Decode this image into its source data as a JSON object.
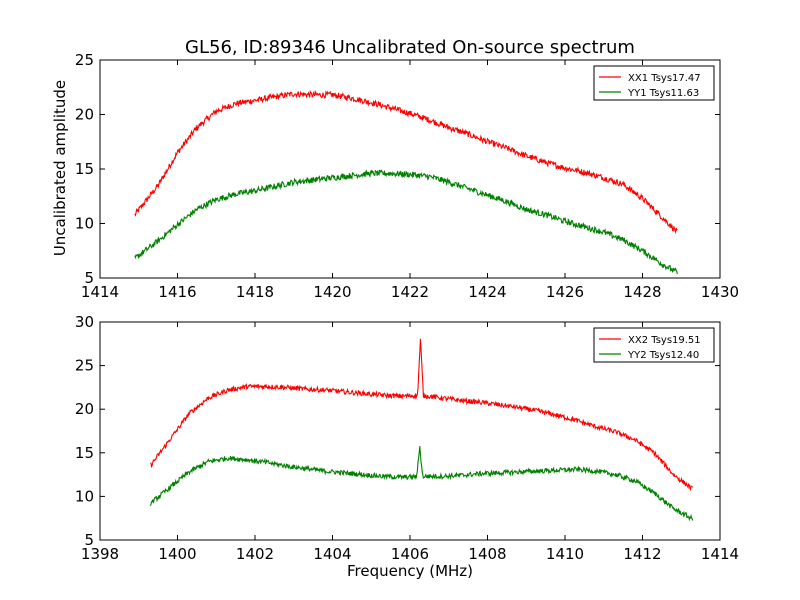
{
  "figure": {
    "title": "GL56, ID:89346 Uncalibrated On-source spectrum",
    "ylabel": "Uncalibrated amplitude",
    "xlabel": "Frequency (MHz)"
  },
  "chart_data": [
    {
      "type": "line",
      "xlim": [
        1414,
        1430
      ],
      "ylim": [
        5,
        25
      ],
      "xticks": [
        1414,
        1416,
        1418,
        1420,
        1422,
        1424,
        1426,
        1428,
        1430
      ],
      "yticks": [
        5,
        10,
        15,
        20,
        25
      ],
      "xrange": [
        1414.9,
        1428.9
      ],
      "legend_position": "top-right",
      "grid": false,
      "series": [
        {
          "name": "XX1 Tsys17.47",
          "color": "#ff0000",
          "x": [
            1414.9,
            1415.5,
            1416.0,
            1416.5,
            1417.0,
            1417.5,
            1418.0,
            1418.5,
            1419.0,
            1419.5,
            1420.0,
            1420.5,
            1421.0,
            1421.5,
            1422.0,
            1422.5,
            1423.0,
            1423.5,
            1424.0,
            1424.5,
            1425.0,
            1425.5,
            1426.0,
            1426.5,
            1427.0,
            1427.5,
            1428.0,
            1428.5,
            1428.9
          ],
          "y": [
            10.8,
            13.5,
            16.5,
            18.8,
            20.3,
            21.0,
            21.3,
            21.6,
            21.9,
            21.8,
            21.8,
            21.5,
            21.1,
            20.6,
            20.1,
            19.5,
            18.8,
            18.2,
            17.5,
            16.9,
            16.2,
            15.6,
            15.1,
            14.7,
            14.2,
            13.6,
            12.3,
            10.6,
            9.2
          ],
          "spikes": []
        },
        {
          "name": "YY1 Tsys11.63",
          "color": "#008000",
          "x": [
            1414.9,
            1415.5,
            1416.0,
            1416.5,
            1417.0,
            1417.5,
            1418.0,
            1418.5,
            1419.0,
            1419.5,
            1420.0,
            1420.5,
            1421.0,
            1421.5,
            1422.0,
            1422.5,
            1423.0,
            1423.5,
            1424.0,
            1424.5,
            1425.0,
            1425.5,
            1426.0,
            1426.5,
            1427.0,
            1427.5,
            1428.0,
            1428.5,
            1428.9
          ],
          "y": [
            6.8,
            8.4,
            9.9,
            11.3,
            12.2,
            12.7,
            13.0,
            13.4,
            13.8,
            14.0,
            14.2,
            14.4,
            14.6,
            14.6,
            14.5,
            14.3,
            13.8,
            13.2,
            12.6,
            12.0,
            11.3,
            10.8,
            10.2,
            9.7,
            9.2,
            8.5,
            7.5,
            6.3,
            5.5
          ],
          "spikes": []
        }
      ]
    },
    {
      "type": "line",
      "xlim": [
        1398,
        1414
      ],
      "ylim": [
        5,
        30
      ],
      "xticks": [
        1398,
        1400,
        1402,
        1404,
        1406,
        1408,
        1410,
        1412,
        1414
      ],
      "yticks": [
        5,
        10,
        15,
        20,
        25,
        30
      ],
      "xrange": [
        1399.3,
        1413.3
      ],
      "xlabel": "Frequency (MHz)",
      "legend_position": "top-right",
      "grid": false,
      "series": [
        {
          "name": "XX2 Tsys19.51",
          "color": "#ff0000",
          "x": [
            1399.3,
            1399.8,
            1400.3,
            1400.8,
            1401.3,
            1401.8,
            1402.3,
            1402.8,
            1403.3,
            1403.8,
            1404.3,
            1404.8,
            1405.3,
            1405.8,
            1406.3,
            1406.8,
            1407.3,
            1407.8,
            1408.3,
            1408.8,
            1409.3,
            1409.8,
            1410.3,
            1410.8,
            1411.3,
            1411.8,
            1412.3,
            1412.8,
            1413.3
          ],
          "y": [
            13.5,
            16.5,
            19.5,
            21.3,
            22.2,
            22.6,
            22.6,
            22.5,
            22.3,
            22.2,
            22.0,
            21.8,
            21.6,
            21.5,
            21.6,
            21.3,
            21.0,
            20.8,
            20.5,
            20.2,
            19.8,
            19.3,
            18.7,
            18.0,
            17.4,
            16.5,
            15.0,
            12.5,
            10.8
          ],
          "spikes": [
            {
              "x": 1406.27,
              "y": 28.0,
              "width": 0.15
            }
          ]
        },
        {
          "name": "YY2 Tsys12.40",
          "color": "#008000",
          "x": [
            1399.3,
            1399.8,
            1400.3,
            1400.8,
            1401.3,
            1401.8,
            1402.3,
            1402.8,
            1403.3,
            1403.8,
            1404.3,
            1404.8,
            1405.3,
            1405.8,
            1406.3,
            1406.8,
            1407.3,
            1407.8,
            1408.3,
            1408.8,
            1409.3,
            1409.8,
            1410.3,
            1410.8,
            1411.3,
            1411.8,
            1412.3,
            1412.8,
            1413.3
          ],
          "y": [
            9.2,
            11.0,
            12.8,
            14.0,
            14.4,
            14.2,
            13.9,
            13.5,
            13.2,
            12.9,
            12.7,
            12.5,
            12.3,
            12.2,
            12.3,
            12.3,
            12.4,
            12.6,
            12.7,
            12.8,
            12.9,
            13.0,
            13.1,
            12.9,
            12.5,
            11.8,
            10.4,
            8.6,
            7.4
          ],
          "spikes": [
            {
              "x": 1406.25,
              "y": 15.8,
              "width": 0.15
            }
          ]
        }
      ]
    }
  ]
}
